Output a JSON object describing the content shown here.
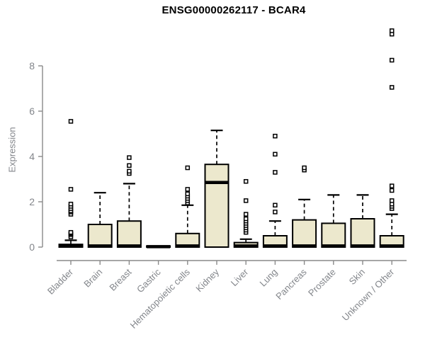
{
  "header": {
    "title": "ENSG00000262117 - BCAR4"
  },
  "chart_data": {
    "type": "boxplot",
    "title": "ENSG00000262117 - BCAR4",
    "xlabel": "",
    "ylabel": "Expression",
    "ylim": [
      0,
      8
    ],
    "yticks": [
      0,
      2,
      4,
      6,
      8
    ],
    "grid": false,
    "legend": "none",
    "categories": [
      "Bladder",
      "Brain",
      "Breast",
      "Gastric",
      "Hematopoietic cells",
      "Kidney",
      "Liver",
      "Lung",
      "Pancreas",
      "Prostate",
      "Skin",
      "Unknown / Other"
    ],
    "series": [
      {
        "name": "Bladder",
        "whisker_low": 0,
        "q1": 0,
        "median": 0.05,
        "q3": 0.12,
        "whisker_high": 0.3,
        "outliers": [
          0.45,
          0.55,
          0.6,
          0.65,
          1.45,
          1.55,
          1.6,
          1.7,
          1.8,
          1.9,
          2.55,
          5.55
        ]
      },
      {
        "name": "Brain",
        "whisker_low": 0,
        "q1": 0,
        "median": 0.05,
        "q3": 1.0,
        "whisker_high": 2.4,
        "outliers": []
      },
      {
        "name": "Breast",
        "whisker_low": 0,
        "q1": 0,
        "median": 0.05,
        "q3": 1.15,
        "whisker_high": 2.8,
        "outliers": [
          3.25,
          3.35,
          3.6,
          3.95
        ]
      },
      {
        "name": "Gastric",
        "whisker_low": 0,
        "q1": 0,
        "median": 0.02,
        "q3": 0.05,
        "whisker_high": 0.05,
        "outliers": []
      },
      {
        "name": "Hematopoietic cells",
        "whisker_low": 0,
        "q1": 0,
        "median": 0.05,
        "q3": 0.6,
        "whisker_high": 1.85,
        "outliers": [
          1.95,
          2.05,
          2.15,
          2.25,
          2.35,
          2.55,
          3.5
        ]
      },
      {
        "name": "Kidney",
        "whisker_low": 0,
        "q1": 0,
        "median": 2.85,
        "q3": 3.65,
        "whisker_high": 5.15,
        "outliers": []
      },
      {
        "name": "Liver",
        "whisker_low": 0,
        "q1": 0,
        "median": 0.05,
        "q3": 0.2,
        "whisker_high": 0.35,
        "outliers": [
          0.65,
          0.75,
          0.85,
          0.95,
          1.05,
          1.15,
          1.25,
          1.45,
          2.05,
          2.9
        ]
      },
      {
        "name": "Lung",
        "whisker_low": 0,
        "q1": 0,
        "median": 0.05,
        "q3": 0.5,
        "whisker_high": 1.15,
        "outliers": [
          1.55,
          1.85,
          3.3,
          4.1,
          4.9
        ]
      },
      {
        "name": "Pancreas",
        "whisker_low": 0,
        "q1": 0,
        "median": 0.05,
        "q3": 1.2,
        "whisker_high": 2.1,
        "outliers": [
          3.4,
          3.5
        ]
      },
      {
        "name": "Prostate",
        "whisker_low": 0,
        "q1": 0,
        "median": 0.05,
        "q3": 1.05,
        "whisker_high": 2.3,
        "outliers": []
      },
      {
        "name": "Skin",
        "whisker_low": 0,
        "q1": 0,
        "median": 0.05,
        "q3": 1.25,
        "whisker_high": 2.3,
        "outliers": []
      },
      {
        "name": "Unknown / Other",
        "whisker_low": 0,
        "q1": 0,
        "median": 0.05,
        "q3": 0.5,
        "whisker_high": 1.45,
        "outliers": [
          1.7,
          1.8,
          1.9,
          2.05,
          2.5,
          2.7,
          7.05,
          8.25,
          9.4,
          9.55
        ]
      }
    ],
    "colors": {
      "box_fill": "#ece8cd",
      "box_stroke": "#000000",
      "median": "#000000",
      "whisker": "#000000",
      "outlier_stroke": "#000000",
      "axis_line": "#8a8a8a",
      "tick_text": "#83868b",
      "title_text": "#000000",
      "background": "#ffffff"
    }
  }
}
